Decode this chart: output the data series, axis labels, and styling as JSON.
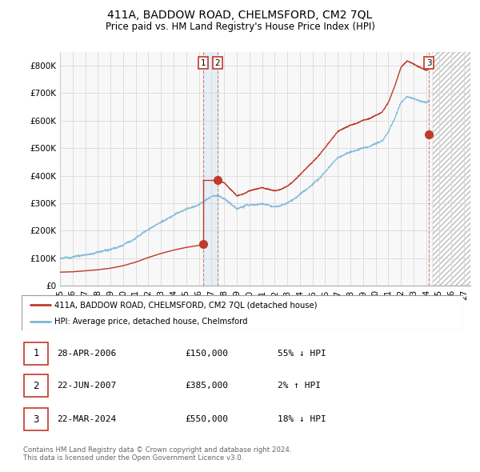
{
  "title": "411A, BADDOW ROAD, CHELMSFORD, CM2 7QL",
  "subtitle": "Price paid vs. HM Land Registry's House Price Index (HPI)",
  "title_fontsize": 10,
  "subtitle_fontsize": 8.5,
  "hpi_color": "#7ab8d9",
  "price_color": "#c0392b",
  "background_color": "#ffffff",
  "grid_color": "#d8d8d8",
  "transactions": [
    {
      "num": "1",
      "date": 2006.32,
      "price": 150000
    },
    {
      "num": "2",
      "date": 2007.47,
      "price": 385000
    },
    {
      "num": "3",
      "date": 2024.22,
      "price": 550000
    }
  ],
  "transaction_table": [
    {
      "num": "1",
      "date": "28-APR-2006",
      "price": "£150,000",
      "pct": "55% ↓ HPI"
    },
    {
      "num": "2",
      "date": "22-JUN-2007",
      "price": "£385,000",
      "pct": "2% ↑ HPI"
    },
    {
      "num": "3",
      "date": "22-MAR-2024",
      "price": "£550,000",
      "pct": "18% ↓ HPI"
    }
  ],
  "legend_entries": [
    "411A, BADDOW ROAD, CHELMSFORD, CM2 7QL (detached house)",
    "HPI: Average price, detached house, Chelmsford"
  ],
  "footer": "Contains HM Land Registry data © Crown copyright and database right 2024.\nThis data is licensed under the Open Government Licence v3.0.",
  "ylim": [
    0,
    850000
  ],
  "yticks": [
    0,
    100000,
    200000,
    300000,
    400000,
    500000,
    600000,
    700000,
    800000
  ],
  "ytick_labels": [
    "£0",
    "£100K",
    "£200K",
    "£300K",
    "£400K",
    "£500K",
    "£600K",
    "£700K",
    "£800K"
  ],
  "xlim_start": 1995.0,
  "xlim_end": 2027.5,
  "xtick_years": [
    1995,
    1996,
    1997,
    1998,
    1999,
    2000,
    2001,
    2002,
    2003,
    2004,
    2005,
    2006,
    2007,
    2008,
    2009,
    2010,
    2011,
    2012,
    2013,
    2014,
    2015,
    2016,
    2017,
    2018,
    2019,
    2020,
    2021,
    2022,
    2023,
    2024,
    2025,
    2026,
    2027
  ],
  "hatched_region_start": 2024.5,
  "hatched_region_end": 2027.5,
  "shade_band_start": 2006.32,
  "shade_band_end": 2007.47
}
